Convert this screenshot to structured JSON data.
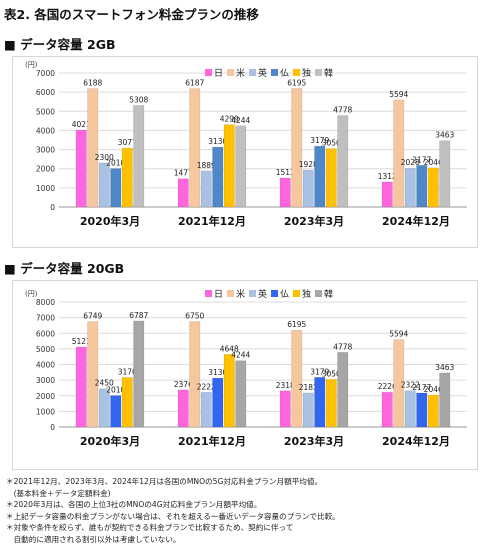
{
  "title": "表2. 各国のスマートフォン料金プランの推移",
  "chart_data": [
    {
      "type": "bar",
      "section_title": "■ データ容量 2GB",
      "unit": "(円)",
      "ylim": [
        0,
        7000
      ],
      "yticks": [
        0,
        1000,
        2000,
        3000,
        4000,
        5000,
        6000,
        7000
      ],
      "legend_position": "top",
      "grid": true,
      "categories": [
        "2020年3月",
        "2021年12月",
        "2023年3月",
        "2024年12月"
      ],
      "series": [
        {
          "name": "日",
          "color": "#ff66dd",
          "values": [
            4021,
            1477,
            1513,
            1312
          ]
        },
        {
          "name": "米",
          "color": "#f6c79e",
          "values": [
            6188,
            6187,
            6195,
            5594
          ]
        },
        {
          "name": "英",
          "color": "#a9c1e2",
          "values": [
            2300,
            1889,
            1928,
            2028
          ]
        },
        {
          "name": "仏",
          "color": "#4f88c8",
          "values": [
            2010,
            3130,
            3179,
            2177
          ]
        },
        {
          "name": "独",
          "color": "#ffc000",
          "values": [
            3077,
            4299,
            3050,
            2046
          ]
        },
        {
          "name": "韓",
          "color": "#bfbfbf",
          "values": [
            5308,
            4244,
            4778,
            3463
          ]
        }
      ]
    },
    {
      "type": "bar",
      "section_title": "■ データ容量 20GB",
      "unit": "(円)",
      "ylim": [
        0,
        8000
      ],
      "yticks": [
        0,
        1000,
        2000,
        3000,
        4000,
        5000,
        6000,
        7000,
        8000
      ],
      "legend_position": "top",
      "grid": true,
      "categories": [
        "2020年3月",
        "2021年12月",
        "2023年3月",
        "2024年12月"
      ],
      "series": [
        {
          "name": "日",
          "color": "#ff66dd",
          "values": [
            5121,
            2376,
            2318,
            2226
          ]
        },
        {
          "name": "米",
          "color": "#f6c79e",
          "values": [
            6749,
            6750,
            6195,
            5594
          ]
        },
        {
          "name": "英",
          "color": "#a9c1e2",
          "values": [
            2450,
            2222,
            2183,
            2322
          ]
        },
        {
          "name": "仏",
          "color": "#3366ee",
          "values": [
            2010,
            3130,
            3179,
            2177
          ]
        },
        {
          "name": "独",
          "color": "#ffc000",
          "values": [
            3170,
            4648,
            3050,
            2046
          ]
        },
        {
          "name": "韓",
          "color": "#a6a6a6",
          "values": [
            6787,
            4244,
            4778,
            3463
          ]
        }
      ]
    }
  ],
  "notes": [
    "＊2021年12月、2023年3月、2024年12月は各国のMNOの5G対応料金プラン月額平均値。",
    "　(基本料金＋データ定額料金)",
    "＊2020年3月は、各国の上位3社のMNOの4G対応料金プラン月額平均値。",
    "＊上記データ容量の料金プランがない場合は、それを超える一番近いデータ容量のプランで比較。",
    "＊対象や条件を絞らず、誰もが契約できる料金プランで比較するため、契約に伴って",
    "　自動的に適用される割引以外は考慮していない。"
  ]
}
